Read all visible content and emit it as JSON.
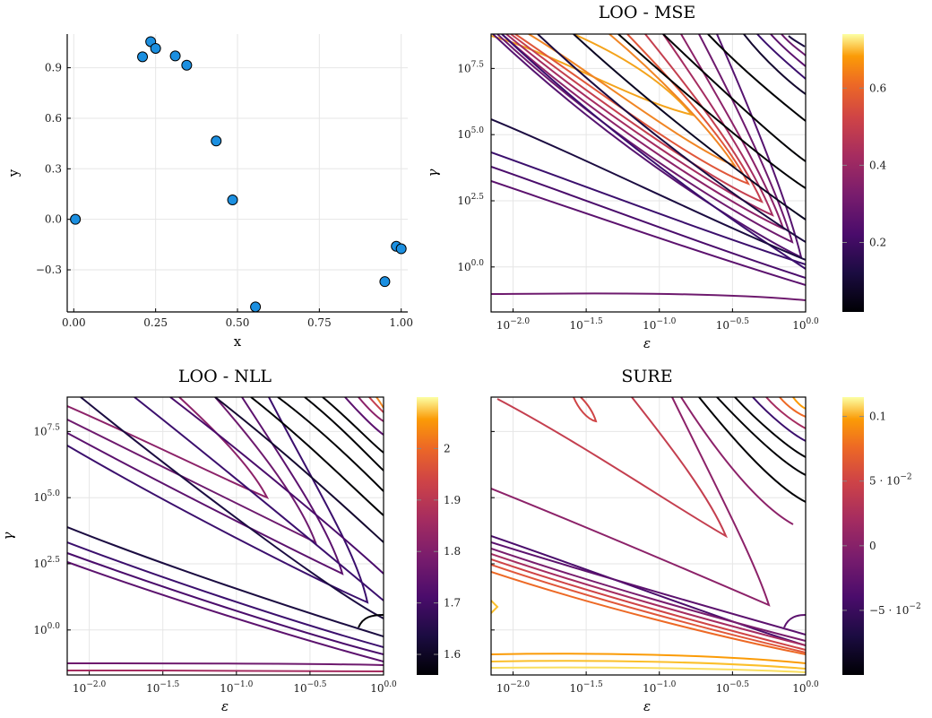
{
  "chart_data": [
    {
      "type": "scatter",
      "title": "",
      "xlabel": "x",
      "ylabel": "y",
      "xlim": [
        -0.02,
        1.02
      ],
      "ylim": [
        -0.55,
        1.1
      ],
      "xticks": [
        "0.00",
        "0.25",
        "0.50",
        "0.75",
        "1.00"
      ],
      "xtick_values": [
        0,
        0.25,
        0.5,
        0.75,
        1.0
      ],
      "yticks": [
        "0.0",
        "0.3",
        "0.6",
        "0.9"
      ],
      "yticks_neg": [
        "−0.3"
      ],
      "ytick_values": [
        -0.3,
        0.0,
        0.3,
        0.6,
        0.9
      ],
      "grid": true,
      "marker_color": "#1b8fe0",
      "x": [
        0.005,
        0.21,
        0.235,
        0.25,
        0.31,
        0.345,
        0.435,
        0.485,
        0.555,
        0.95,
        0.985,
        1.0
      ],
      "y": [
        0.0,
        0.965,
        1.055,
        1.015,
        0.97,
        0.915,
        0.465,
        0.115,
        -0.52,
        -0.37,
        -0.16,
        -0.175
      ]
    },
    {
      "type": "contour",
      "title": "LOO - MSE",
      "xlabel": "ε",
      "ylabel": "γ",
      "xticks": [
        "−2.0",
        "−1.5",
        "−1.0",
        "−0.5",
        "0.0"
      ],
      "yticks": [
        "0.0",
        "2.5",
        "5.0",
        "7.5"
      ],
      "tick_base": "10",
      "colorbar_ticks": [
        "0.2",
        "0.4",
        "0.6"
      ],
      "colorbar_tick_values": [
        0.2,
        0.4,
        0.6
      ],
      "colorbar_range": [
        0.02,
        0.74
      ],
      "colormap": "inferno"
    },
    {
      "type": "contour",
      "title": "LOO - NLL",
      "xlabel": "ε",
      "ylabel": "γ",
      "xticks": [
        "−2.0",
        "−1.5",
        "−1.0",
        "−0.5",
        "0.0"
      ],
      "yticks": [
        "0.0",
        "2.5",
        "5.0",
        "7.5"
      ],
      "tick_base": "10",
      "colorbar_ticks": [
        "1.6",
        "1.7",
        "1.8",
        "1.9",
        "2"
      ],
      "colorbar_tick_values": [
        1.6,
        1.7,
        1.8,
        1.9,
        2.0
      ],
      "colorbar_range": [
        1.56,
        2.1
      ],
      "colormap": "inferno"
    },
    {
      "type": "contour",
      "title": "SURE",
      "xlabel": "ε",
      "ylabel": "",
      "xticks": [
        "−2.0",
        "−1.5",
        "−1.0",
        "−0.5",
        "0.0"
      ],
      "yticks": [],
      "tick_base": "10",
      "colorbar_ticks_text": [
        "0.1",
        "0"
      ],
      "colorbar_ticks_exp": [
        "5 · 10",
        "−5 · 10"
      ],
      "colorbar_ticks_exp_power": "−2",
      "colorbar_tick_values": [
        0.1,
        0.05,
        0.0,
        -0.05
      ],
      "colorbar_range": [
        -0.1,
        0.115
      ],
      "colormap": "inferno"
    }
  ]
}
